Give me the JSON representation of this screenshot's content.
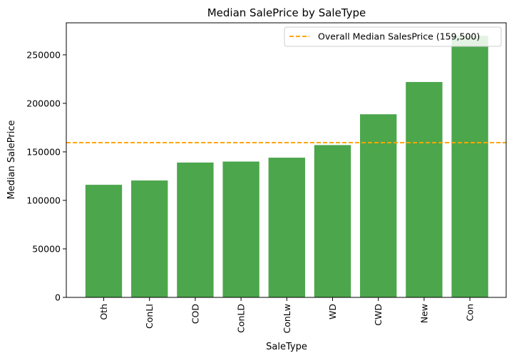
{
  "chart_data": {
    "type": "bar",
    "title": "Median SalePrice by SaleType",
    "xlabel": "SaleType",
    "ylabel": "Median SalePrice",
    "categories": [
      "Oth",
      "ConLI",
      "COD",
      "ConLD",
      "ConLw",
      "WD",
      "CWD",
      "New",
      "Con"
    ],
    "values": [
      116050,
      120500,
      139000,
      140000,
      144000,
      157000,
      188750,
      222000,
      269600
    ],
    "ylim": [
      0,
      283000
    ],
    "yticks": [
      0,
      50000,
      100000,
      150000,
      200000,
      250000
    ],
    "bar_color": "#4ca64c",
    "grid": false,
    "reference_line": {
      "value": 159500,
      "label": "Overall Median SalesPrice (159,500)",
      "color": "#ffa500",
      "style": "dashed"
    },
    "legend_position": "top-right"
  }
}
